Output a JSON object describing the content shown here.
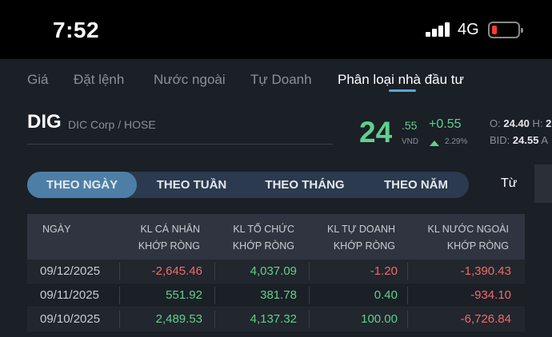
{
  "status": {
    "time": "7:52",
    "network": "4G",
    "battery_level": 0.12,
    "battery_color": "#ff3b30"
  },
  "tabs": [
    {
      "label": "Giá"
    },
    {
      "label": "Đặt lệnh"
    },
    {
      "label": "Nước ngoài"
    },
    {
      "label": "Tự Doanh"
    },
    {
      "label": "Phân loại nhà đầu tư",
      "active": true
    }
  ],
  "stock": {
    "symbol": "DIG",
    "company": "DIC Corp / HOSE",
    "price_int": "24",
    "price_dec": ".55",
    "unit": "VND",
    "change": "+0.55",
    "change_pct": "2.29%",
    "open_label": "O:",
    "open": "24.40",
    "high_label": "H:",
    "high": "2",
    "bid_label": "BID:",
    "bid": "24.55",
    "ask_label": "A"
  },
  "period": {
    "buttons": [
      "THEO NGÀY",
      "THEO TUẦN",
      "THEO THÁNG",
      "THEO NĂM"
    ],
    "active": "THEO NGÀY",
    "from_label": "Từ"
  },
  "table": {
    "headers": [
      {
        "line1": "NGÀY",
        "line2": ""
      },
      {
        "line1": "KL CÁ NHÂN",
        "line2": "KHỚP RÒNG"
      },
      {
        "line1": "KL TỔ CHỨC",
        "line2": "KHỚP RÒNG"
      },
      {
        "line1": "KL TỰ DOANH",
        "line2": "KHỚP RÒNG"
      },
      {
        "line1": "KL NƯỚC NGOÀI",
        "line2": "KHỚP RÒNG"
      }
    ],
    "rows": [
      {
        "date": "09/12/2025",
        "individual": "-2,645.46",
        "institution": "4,037.09",
        "proprietary": "-1.20",
        "foreign": "-1,390.43"
      },
      {
        "date": "09/11/2025",
        "individual": "551.92",
        "institution": "381.78",
        "proprietary": "0.40",
        "foreign": "-934.10"
      },
      {
        "date": "09/10/2025",
        "individual": "2,489.53",
        "institution": "4,137.32",
        "proprietary": "100.00",
        "foreign": "-6,726.84"
      }
    ]
  },
  "colors": {
    "positive": "#5fd08e",
    "negative": "#ef6b6b",
    "accent": "#4d7fa6"
  }
}
